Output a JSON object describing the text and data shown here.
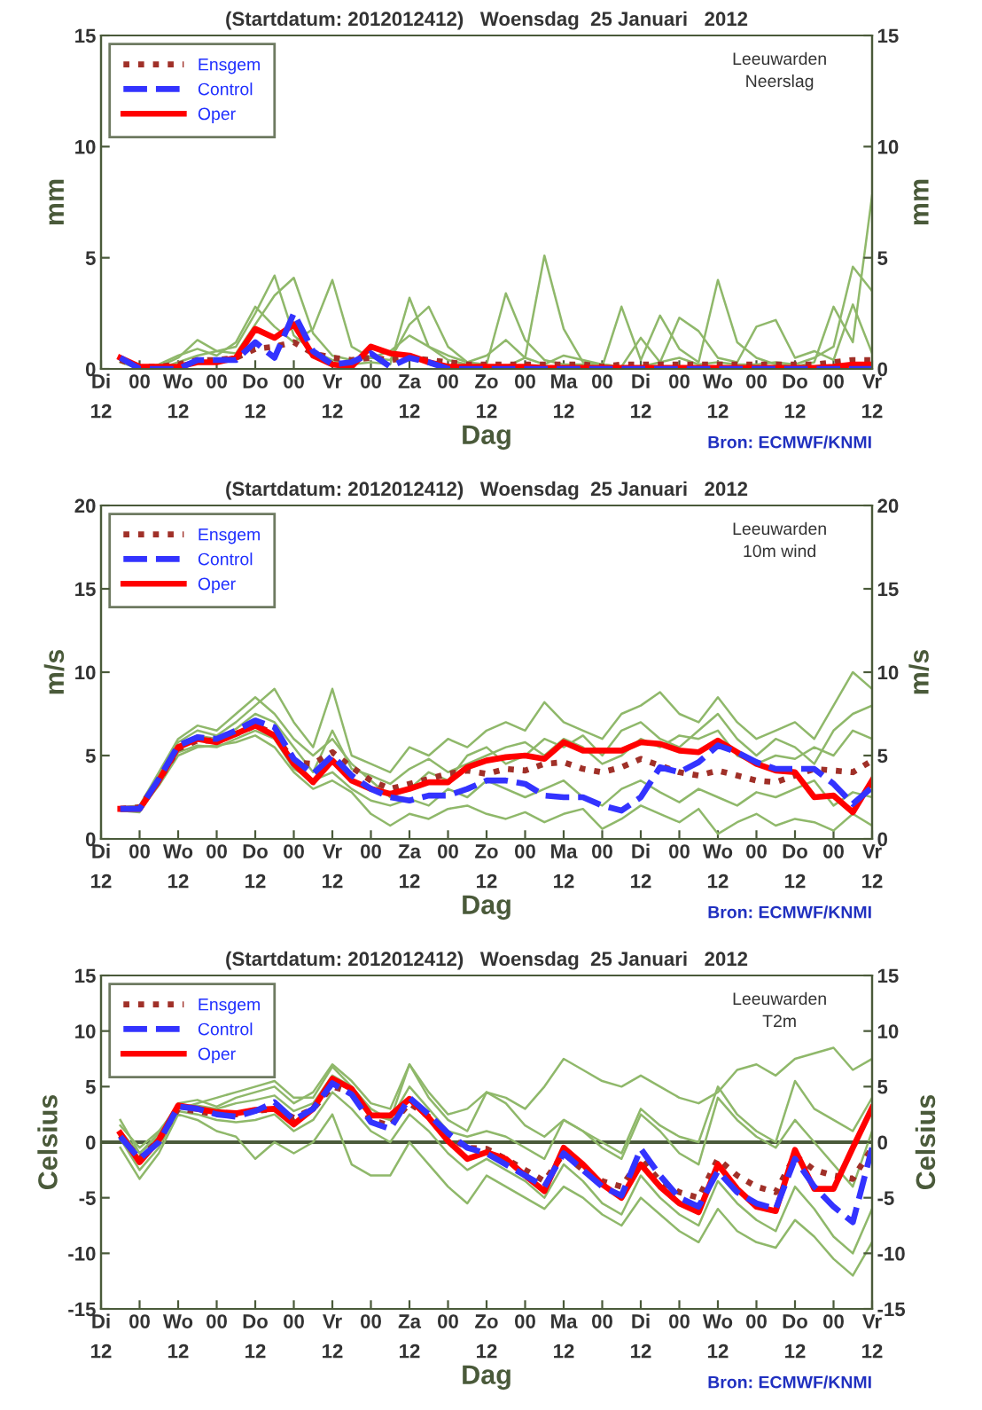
{
  "chart_data": [
    {
      "type": "line",
      "title": "(Startdatum: 2012012412)   Woensdag  25 Januari   2012",
      "xlabel": "Dag",
      "ylabel": "mm",
      "y2label": "mm",
      "annotations": [
        "Leeuwarden\nNeerslag",
        "Bron: ECMWF/KNMI"
      ],
      "categories": [
        "Di\n12",
        null,
        "00",
        null,
        "Wo\n12",
        null,
        "00",
        null,
        "Do\n12",
        null,
        "00",
        null,
        "Vr\n12",
        null,
        "00",
        null,
        "Za\n12",
        null,
        "00",
        null,
        "Zo\n12",
        null,
        "00",
        null,
        "Ma\n12",
        null,
        "00",
        null,
        "Di\n12",
        null,
        "00",
        null,
        "Wo\n12",
        null,
        "00",
        null,
        "Do\n12",
        null,
        "00",
        null,
        "Vr\n12"
      ],
      "ylim": [
        0,
        15
      ],
      "yticks": [
        0,
        5,
        10,
        15
      ],
      "y2lim": [
        0,
        15
      ],
      "y2ticks": [
        0,
        5,
        10,
        15
      ],
      "legend": "top left",
      "series": [
        {
          "color": "#8fb86a",
          "line_style": "solid",
          "values": [
            null,
            0.5,
            0,
            0,
            0.3,
            0.6,
            0.8,
            1.0,
            2.5,
            4.2,
            1.5,
            0.8,
            0.4,
            0.2,
            0.3,
            0.2,
            3.2,
            1.0,
            0.4,
            0.2,
            0.1,
            0.1,
            0.5,
            5.1,
            1.8,
            0.3,
            0.2,
            0.1,
            0.1,
            0.3,
            0.5,
            0.2,
            0.3,
            0.2,
            0.2,
            0.3,
            0.2,
            0.5,
            1.0,
            4.6,
            3.5
          ]
        },
        {
          "color": "#8fb86a",
          "line_style": "solid",
          "values": [
            null,
            0.4,
            0.1,
            0.1,
            0.5,
            1.3,
            0.8,
            0.7,
            2.0,
            3.3,
            4.1,
            1.6,
            0.6,
            0.4,
            0.5,
            0.4,
            2.0,
            2.8,
            1.0,
            0.3,
            0.2,
            3.4,
            1.3,
            0.4,
            0.2,
            0.2,
            0.1,
            2.8,
            0.4,
            2.4,
            0.9,
            0.3,
            4.0,
            1.2,
            0.5,
            0.2,
            0.1,
            0.3,
            2.8,
            1.2,
            7.8
          ]
        },
        {
          "color": "#8fb86a",
          "line_style": "solid",
          "values": [
            null,
            0.3,
            0.0,
            0.2,
            0.6,
            0.9,
            0.6,
            1.2,
            2.8,
            1.9,
            1.2,
            1.8,
            4.0,
            1.0,
            0.5,
            0.8,
            1.5,
            1.0,
            0.6,
            0.3,
            0.6,
            1.3,
            0.5,
            0.2,
            0.6,
            0.4,
            0.2,
            0.1,
            1.4,
            0.3,
            2.3,
            1.7,
            0.5,
            0.3,
            1.9,
            2.2,
            0.5,
            0.8,
            0.4,
            2.9,
            0.7
          ]
        },
        {
          "name": "Ensgem",
          "color": "#a03028",
          "line_style": "dotted",
          "values": [
            null,
            0.4,
            0.1,
            0.1,
            0.2,
            0.4,
            0.4,
            0.5,
            0.9,
            1.0,
            1.2,
            0.7,
            0.5,
            0.4,
            0.5,
            0.4,
            0.5,
            0.4,
            0.3,
            0.2,
            0.2,
            0.2,
            0.2,
            0.2,
            0.2,
            0.2,
            0.1,
            0.2,
            0.2,
            0.2,
            0.2,
            0.2,
            0.2,
            0.2,
            0.2,
            0.2,
            0.2,
            0.2,
            0.3,
            0.4,
            0.4
          ]
        },
        {
          "name": "Control",
          "color": "#3333ff",
          "line_style": "dashed",
          "values": [
            null,
            0.5,
            0,
            0,
            0,
            0.4,
            0.4,
            0.4,
            1.2,
            0.5,
            2.5,
            0.8,
            0.2,
            0.3,
            0.7,
            0.1,
            0.5,
            0.3,
            0,
            0,
            0,
            0,
            0,
            0,
            0,
            0,
            0,
            0,
            0,
            0,
            0,
            0,
            0,
            0,
            0,
            0,
            0,
            0,
            0,
            0,
            0
          ]
        },
        {
          "name": "Oper",
          "color": "#ff0000",
          "line_style": "solid",
          "values": [
            null,
            0.5,
            0.1,
            0.1,
            0.1,
            0.3,
            0.3,
            0.5,
            1.8,
            1.4,
            2.0,
            0.6,
            0.2,
            0.1,
            1.0,
            0.7,
            0.6,
            0.3,
            0.1,
            0.1,
            0.1,
            0.1,
            0.1,
            0.05,
            0.05,
            0.05,
            0.05,
            0.05,
            0.05,
            0.05,
            0.05,
            0.05,
            0.05,
            0.05,
            0.05,
            0.05,
            0.05,
            0.05,
            0.1,
            0.2,
            0.2
          ]
        }
      ]
    },
    {
      "type": "line",
      "title": "(Startdatum: 2012012412)   Woensdag  25 Januari   2012",
      "xlabel": "Dag",
      "ylabel": "m/s",
      "y2label": "m/s",
      "annotations": [
        "Leeuwarden\n10m wind",
        "Bron: ECMWF/KNMI"
      ],
      "categories": [
        "Di\n12",
        null,
        "00",
        null,
        "Wo\n12",
        null,
        "00",
        null,
        "Do\n12",
        null,
        "00",
        null,
        "Vr\n12",
        null,
        "00",
        null,
        "Za\n12",
        null,
        "00",
        null,
        "Zo\n12",
        null,
        "00",
        null,
        "Ma\n12",
        null,
        "00",
        null,
        "Di\n12",
        null,
        "00",
        null,
        "Wo\n12",
        null,
        "00",
        null,
        "Do\n12",
        null,
        "00",
        null,
        "Vr\n12"
      ],
      "ylim": [
        0,
        20
      ],
      "yticks": [
        0,
        5,
        10,
        15,
        20
      ],
      "y2lim": [
        0,
        20
      ],
      "y2ticks": [
        0,
        5,
        10,
        15,
        20
      ],
      "legend": "top left",
      "series": [
        {
          "color": "#8fb86a",
          "line_style": "solid",
          "values": [
            null,
            1.8,
            1.8,
            3.8,
            5.8,
            6.5,
            6.2,
            7.0,
            8.0,
            9.0,
            7.0,
            5.5,
            9.0,
            5.0,
            4.5,
            4.0,
            5.5,
            5.0,
            6.0,
            5.5,
            6.5,
            7.0,
            6.5,
            8.2,
            7.0,
            6.5,
            6.0,
            7.5,
            8.0,
            8.8,
            7.5,
            7.0,
            8.5,
            7.0,
            6.0,
            6.5,
            7.0,
            6.0,
            8.0,
            10.0,
            9.0
          ]
        },
        {
          "color": "#8fb86a",
          "line_style": "solid",
          "values": [
            null,
            1.8,
            1.7,
            3.2,
            5.0,
            5.5,
            5.6,
            5.8,
            6.2,
            5.5,
            4.0,
            3.0,
            3.5,
            2.8,
            1.5,
            0.8,
            1.5,
            1.2,
            1.8,
            2.0,
            1.5,
            1.2,
            1.6,
            1.0,
            1.5,
            1.8,
            0.6,
            1.2,
            2.0,
            1.5,
            1.0,
            1.8,
            0.3,
            1.0,
            1.5,
            0.8,
            1.2,
            1.0,
            0.5,
            1.5,
            0.8
          ]
        },
        {
          "color": "#8fb86a",
          "line_style": "solid",
          "values": [
            null,
            1.9,
            2.0,
            4.0,
            6.0,
            6.8,
            6.5,
            7.5,
            8.5,
            7.5,
            6.0,
            5.0,
            6.0,
            4.5,
            3.5,
            2.5,
            3.0,
            4.0,
            3.5,
            5.0,
            5.5,
            4.5,
            5.0,
            6.0,
            5.5,
            6.2,
            5.0,
            6.5,
            7.0,
            6.0,
            5.5,
            6.5,
            7.5,
            6.0,
            5.0,
            6.0,
            5.5,
            4.5,
            6.5,
            7.5,
            8.0
          ]
        },
        {
          "color": "#8fb86a",
          "line_style": "solid",
          "values": [
            null,
            1.7,
            1.6,
            3.3,
            5.2,
            5.6,
            5.5,
            6.0,
            6.5,
            6.0,
            4.2,
            3.5,
            4.0,
            3.0,
            2.3,
            2.0,
            2.4,
            2.0,
            3.0,
            2.5,
            3.5,
            3.0,
            2.5,
            3.0,
            3.5,
            2.5,
            2.0,
            3.0,
            3.5,
            2.8,
            2.2,
            3.0,
            2.5,
            2.0,
            2.8,
            2.5,
            3.0,
            3.5,
            2.0,
            2.8,
            2.5
          ]
        },
        {
          "color": "#8fb86a",
          "line_style": "solid",
          "values": [
            null,
            1.8,
            1.9,
            3.6,
            5.5,
            6.2,
            6.0,
            6.6,
            7.5,
            7.0,
            5.5,
            4.0,
            6.5,
            4.2,
            3.8,
            3.3,
            4.2,
            4.8,
            4.0,
            4.5,
            5.0,
            5.5,
            5.8,
            5.0,
            6.0,
            5.5,
            4.5,
            5.0,
            6.0,
            5.5,
            6.2,
            6.0,
            6.5,
            5.0,
            4.5,
            5.0,
            4.8,
            5.5,
            5.0,
            6.5,
            6.0
          ]
        },
        {
          "name": "Ensgem",
          "color": "#a03028",
          "line_style": "dotted",
          "values": [
            null,
            1.8,
            1.9,
            3.5,
            5.4,
            5.9,
            5.9,
            6.3,
            6.8,
            6.3,
            4.6,
            4.5,
            5.2,
            4.3,
            3.5,
            3.0,
            3.3,
            3.6,
            3.9,
            4.1,
            3.9,
            4.2,
            4.1,
            4.5,
            4.6,
            4.2,
            4.0,
            4.3,
            4.8,
            4.4,
            4.0,
            3.8,
            4.1,
            3.8,
            3.5,
            3.4,
            3.8,
            4.2,
            4.1,
            4.0,
            4.7
          ]
        },
        {
          "name": "Control",
          "color": "#3333ff",
          "line_style": "dashed",
          "values": [
            null,
            1.8,
            1.8,
            3.6,
            5.6,
            6.1,
            6.0,
            6.5,
            7.1,
            6.7,
            4.8,
            3.9,
            5.0,
            3.8,
            3.0,
            2.5,
            2.3,
            2.6,
            2.6,
            3.0,
            3.5,
            3.5,
            3.3,
            2.6,
            2.5,
            2.5,
            2.0,
            1.7,
            2.5,
            4.3,
            4.0,
            4.6,
            5.6,
            5.2,
            4.6,
            4.2,
            4.2,
            4.2,
            3.3,
            2.1,
            3.1
          ]
        },
        {
          "name": "Oper",
          "color": "#ff0000",
          "line_style": "solid",
          "values": [
            null,
            1.8,
            1.8,
            3.5,
            5.5,
            6.0,
            5.8,
            6.3,
            6.8,
            6.2,
            4.5,
            3.4,
            4.7,
            3.5,
            3.0,
            2.7,
            3.0,
            3.4,
            3.4,
            4.3,
            4.7,
            4.9,
            5.0,
            4.8,
            5.8,
            5.3,
            5.3,
            5.3,
            5.8,
            5.7,
            5.3,
            5.2,
            5.9,
            5.2,
            4.5,
            4.1,
            4.0,
            2.5,
            2.6,
            1.6,
            3.5
          ]
        }
      ]
    },
    {
      "type": "line",
      "title": "(Startdatum: 2012012412)   Woensdag  25 Januari   2012",
      "xlabel": "Dag",
      "ylabel": "Celsius",
      "y2label": "Celsius",
      "annotations": [
        "Leeuwarden\nT2m",
        "Bron: ECMWF/KNMI"
      ],
      "categories": [
        "Di\n12",
        null,
        "00",
        null,
        "Wo\n12",
        null,
        "00",
        null,
        "Do\n12",
        null,
        "00",
        null,
        "Vr\n12",
        null,
        "00",
        null,
        "Za\n12",
        null,
        "00",
        null,
        "Zo\n12",
        null,
        "00",
        null,
        "Ma\n12",
        null,
        "00",
        null,
        "Di\n12",
        null,
        "00",
        null,
        "Wo\n12",
        null,
        "00",
        null,
        "Do\n12",
        null,
        "00",
        null,
        "Vr\n12"
      ],
      "ylim": [
        -15,
        15
      ],
      "yticks": [
        -15,
        -10,
        -5,
        0,
        5,
        10,
        15
      ],
      "y2lim": [
        -15,
        15
      ],
      "y2ticks": [
        -15,
        -10,
        -5,
        0,
        5,
        10,
        15
      ],
      "legend": "top left",
      "ref_lines": [
        {
          "axis": "y",
          "value": 0,
          "color": "#4a5a3a"
        }
      ],
      "series": [
        {
          "color": "#8fb86a",
          "line_style": "solid",
          "values": [
            null,
            2.0,
            -1.0,
            0.8,
            3.5,
            3.8,
            3.2,
            4.0,
            4.5,
            5.0,
            3.5,
            4.5,
            7.0,
            5.5,
            3.5,
            3.0,
            7.0,
            4.5,
            2.5,
            3.0,
            4.5,
            4.0,
            3.0,
            5.0,
            7.5,
            6.5,
            5.5,
            5.0,
            6.0,
            5.0,
            4.0,
            3.5,
            4.5,
            6.5,
            7.0,
            6.0,
            7.5,
            8.0,
            8.5,
            6.5,
            7.5
          ]
        },
        {
          "color": "#8fb86a",
          "line_style": "solid",
          "values": [
            null,
            -0.5,
            -3.3,
            -1.0,
            2.5,
            2.0,
            1.0,
            0.5,
            -1.5,
            0.0,
            -1.0,
            0.0,
            2.5,
            -2.0,
            -3.0,
            -3.0,
            0.0,
            -2.0,
            -4.0,
            -5.5,
            -3.0,
            -4.0,
            -5.0,
            -6.0,
            -4.0,
            -5.0,
            -6.5,
            -7.5,
            -5.0,
            -6.5,
            -8.0,
            -9.0,
            -6.0,
            -8.0,
            -9.0,
            -9.5,
            -7.0,
            -8.5,
            -10.5,
            -12.0,
            -9.0
          ]
        },
        {
          "color": "#8fb86a",
          "line_style": "solid",
          "values": [
            null,
            1.0,
            -1.0,
            0.5,
            3.0,
            3.5,
            4.0,
            4.5,
            5.0,
            5.5,
            4.0,
            4.0,
            6.8,
            5.0,
            3.0,
            2.0,
            7.0,
            4.0,
            2.0,
            1.0,
            4.5,
            3.5,
            1.5,
            0.5,
            2.0,
            1.0,
            0.0,
            -1.0,
            3.0,
            1.5,
            0.5,
            0.0,
            5.0,
            2.5,
            1.0,
            0.0,
            5.5,
            3.0,
            2.0,
            1.0,
            4.0
          ]
        },
        {
          "color": "#8fb86a",
          "line_style": "solid",
          "values": [
            null,
            0.3,
            -2.5,
            -0.5,
            2.8,
            2.5,
            2.0,
            1.8,
            2.0,
            2.5,
            1.0,
            2.0,
            4.5,
            3.0,
            1.0,
            0.0,
            2.5,
            1.0,
            -1.0,
            -2.5,
            -1.5,
            -2.5,
            -3.5,
            -5.0,
            -2.0,
            -3.5,
            -5.5,
            -6.5,
            -3.0,
            -5.0,
            -6.5,
            -7.5,
            -3.5,
            -5.5,
            -7.0,
            -8.0,
            -4.0,
            -6.0,
            -8.5,
            -10.0,
            -6.0
          ]
        },
        {
          "color": "#8fb86a",
          "line_style": "solid",
          "values": [
            null,
            1.5,
            -0.5,
            1.0,
            3.2,
            3.3,
            3.0,
            3.5,
            3.8,
            4.2,
            2.8,
            3.5,
            6.0,
            5.0,
            2.5,
            2.0,
            5.0,
            3.0,
            1.0,
            0.5,
            1.0,
            0.5,
            -0.5,
            -1.5,
            2.0,
            1.0,
            -0.5,
            -1.5,
            2.5,
            1.0,
            -1.0,
            -2.0,
            4.0,
            2.0,
            0.5,
            -0.5,
            2.0,
            0.0,
            -2.0,
            -4.0,
            1.0
          ]
        },
        {
          "name": "Ensgem",
          "color": "#a03028",
          "line_style": "dotted",
          "values": [
            null,
            0.6,
            -1.5,
            0.2,
            3.0,
            2.8,
            2.5,
            2.5,
            2.8,
            3.0,
            2.2,
            3.0,
            5.0,
            4.5,
            2.0,
            1.5,
            3.5,
            2.3,
            0.5,
            -0.5,
            -0.6,
            -1.5,
            -2.5,
            -3.5,
            -1.0,
            -2.5,
            -3.5,
            -4.0,
            -1.5,
            -3.5,
            -4.5,
            -5.0,
            -1.5,
            -3.0,
            -4.0,
            -4.5,
            -1.2,
            -2.5,
            -3.0,
            -3.3,
            -0.5
          ]
        },
        {
          "name": "Control",
          "color": "#3333ff",
          "line_style": "dashed",
          "values": [
            null,
            0.5,
            -1.5,
            0.0,
            3.2,
            3.0,
            2.5,
            2.3,
            2.8,
            3.6,
            2.0,
            3.0,
            5.3,
            4.3,
            1.8,
            1.2,
            4.0,
            2.5,
            0.8,
            -0.5,
            -1.0,
            -2.0,
            -3.0,
            -4.0,
            -1.0,
            -2.5,
            -4.0,
            -4.8,
            -0.6,
            -3.0,
            -5.0,
            -5.8,
            -2.6,
            -4.5,
            -5.5,
            -6.0,
            -1.5,
            -4.0,
            -5.8,
            -7.2,
            -0.5
          ]
        },
        {
          "name": "Oper",
          "color": "#ff0000",
          "line_style": "solid",
          "values": [
            null,
            0.8,
            -1.8,
            0.2,
            3.3,
            3.0,
            2.7,
            2.6,
            2.9,
            3.0,
            1.6,
            3.0,
            5.7,
            4.8,
            2.4,
            2.4,
            3.9,
            2.2,
            0.1,
            -1.5,
            -0.9,
            -1.5,
            -3.0,
            -4.4,
            -0.5,
            -2.0,
            -3.8,
            -5.0,
            -2.0,
            -4.0,
            -5.5,
            -6.3,
            -2.0,
            -4.2,
            -5.8,
            -6.2,
            -0.7,
            -4.2,
            -4.2,
            -0.5,
            3.1
          ]
        }
      ]
    }
  ]
}
